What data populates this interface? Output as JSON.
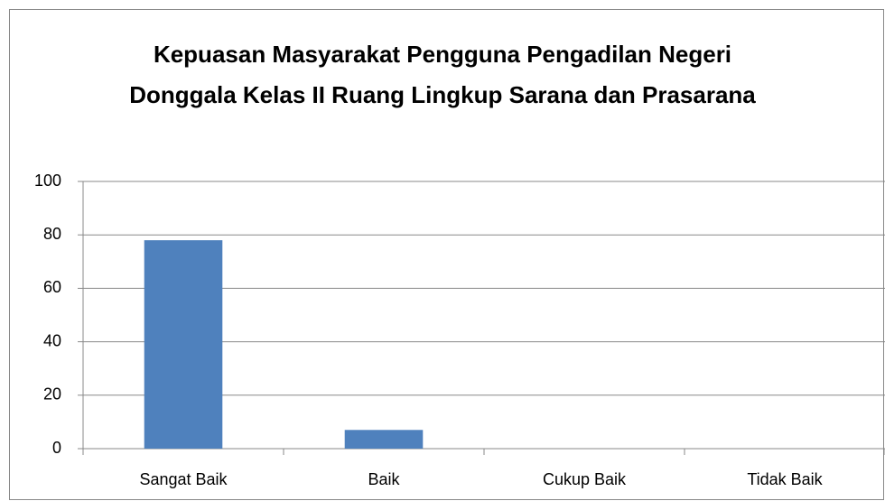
{
  "chart_data": {
    "type": "bar",
    "title": "Kepuasan Masyarakat Pengguna Pengadilan Negeri Donggala Kelas II Ruang Lingkup Sarana dan Prasarana",
    "categories": [
      "Sangat Baik",
      "Baik",
      "Cukup Baik",
      "Tidak Baik"
    ],
    "values": [
      78,
      7,
      0,
      0
    ],
    "color": "#4f81bd",
    "ylim": [
      0,
      100
    ],
    "yticks": [
      0,
      20,
      40,
      60,
      80,
      100
    ],
    "grid": true
  }
}
